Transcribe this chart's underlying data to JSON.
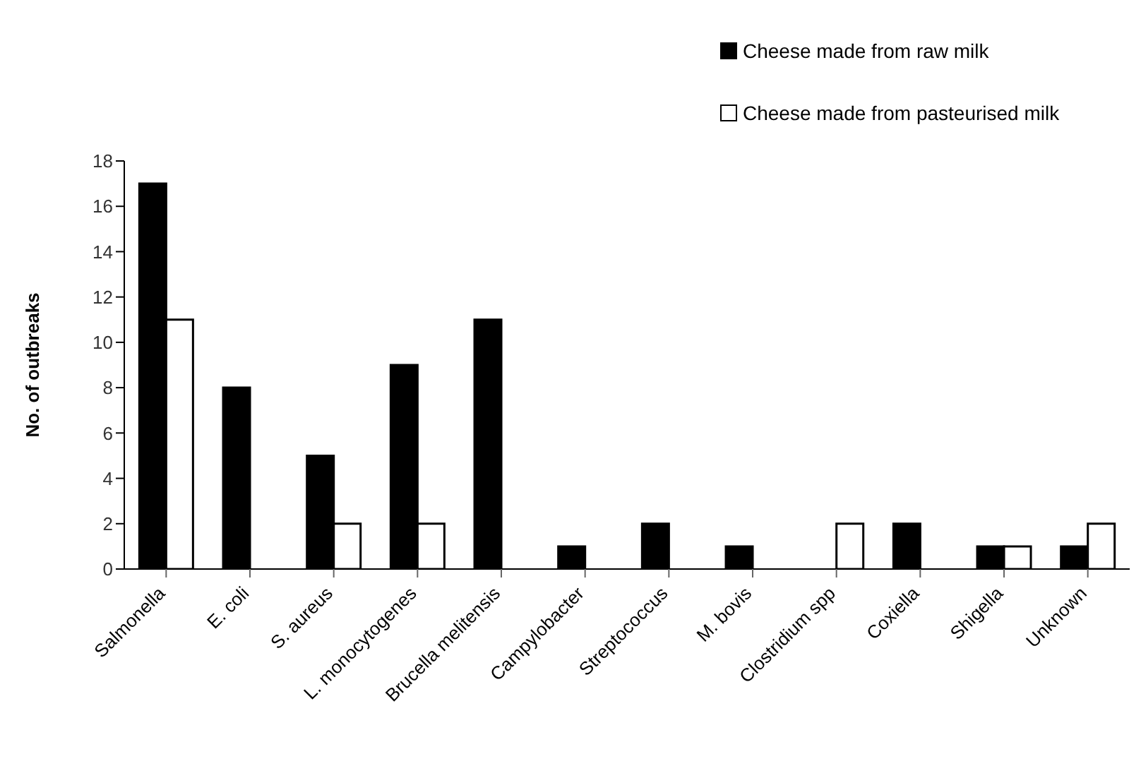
{
  "chart_data": {
    "type": "bar",
    "ylabel": "No. of outbreaks",
    "categories": [
      "Salmonella",
      "E. coli",
      "S. aureus",
      "L. monocytogenes",
      "Brucella melitensis",
      "Campylobacter",
      "Streptococcus",
      "M. bovis",
      "Clostridium spp",
      "Coxiella",
      "Shigella",
      "Unknown"
    ],
    "series": [
      {
        "name": "Cheese made from raw milk",
        "color": "#000000",
        "values": [
          17,
          8,
          5,
          9,
          11,
          1,
          2,
          1,
          0,
          2,
          1,
          1
        ]
      },
      {
        "name": "Cheese made from pasteurised milk",
        "color": "#ffffff",
        "values": [
          11,
          0,
          2,
          2,
          0,
          0,
          0,
          0,
          2,
          0,
          1,
          2
        ]
      }
    ],
    "ylim": [
      0,
      18
    ],
    "yticks": [
      0,
      2,
      4,
      6,
      8,
      10,
      12,
      14,
      16,
      18
    ],
    "grid": false,
    "legend": "top right"
  }
}
